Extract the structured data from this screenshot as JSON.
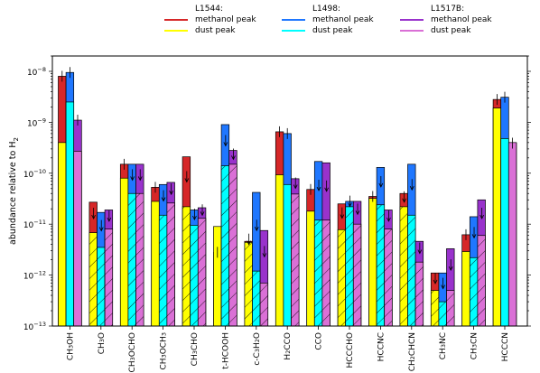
{
  "chart_data": {
    "type": "bar",
    "ylabel": "abundance relative to H",
    "ylabel_sub": "2",
    "yscale": "log",
    "ylim": [
      1e-13,
      2e-08
    ],
    "yticks": [
      {
        "value": 1e-13,
        "label": "10",
        "exp": "−13"
      },
      {
        "value": 1e-12,
        "label": "10",
        "exp": "−12"
      },
      {
        "value": 1e-11,
        "label": "10",
        "exp": "−11"
      },
      {
        "value": 1e-10,
        "label": "10",
        "exp": "−10"
      },
      {
        "value": 1e-09,
        "label": "10",
        "exp": "−9"
      },
      {
        "value": 1e-08,
        "label": "10",
        "exp": "−8"
      }
    ],
    "categories": [
      "CH3OH",
      "CH3O",
      "CH3OCHO",
      "CH3OCH3",
      "CH3CHO",
      "t-HCOOH",
      "c-C3H2O",
      "H2CCO",
      "CCO",
      "HCCCHO",
      "HCCNC",
      "CH2CHCN",
      "CH3NC",
      "CH3CN",
      "HCCCN"
    ],
    "category_labels": [
      [
        [
          "CH",
          ""
        ],
        [
          "3",
          "sub"
        ],
        [
          "OH",
          ""
        ]
      ],
      [
        [
          "CH",
          ""
        ],
        [
          "3",
          "sub"
        ],
        [
          "O",
          ""
        ]
      ],
      [
        [
          "CH",
          ""
        ],
        [
          "3",
          "sub"
        ],
        [
          "OCHO",
          ""
        ]
      ],
      [
        [
          "CH",
          ""
        ],
        [
          "3",
          "sub"
        ],
        [
          "OCH",
          ""
        ],
        [
          "3",
          "sub"
        ]
      ],
      [
        [
          "CH",
          ""
        ],
        [
          "3",
          "sub"
        ],
        [
          "CHO",
          ""
        ]
      ],
      [
        [
          "t-HCOOH",
          ""
        ]
      ],
      [
        [
          "c-C",
          ""
        ],
        [
          "3",
          "sub"
        ],
        [
          "H",
          ""
        ],
        [
          "2",
          "sub"
        ],
        [
          "O",
          ""
        ]
      ],
      [
        [
          "H",
          ""
        ],
        [
          "2",
          "sub"
        ],
        [
          "CCO",
          ""
        ]
      ],
      [
        [
          "CCO",
          ""
        ]
      ],
      [
        [
          "HCCCHO",
          ""
        ]
      ],
      [
        [
          "HCCNC",
          ""
        ]
      ],
      [
        [
          "CH",
          ""
        ],
        [
          "2",
          "sub"
        ],
        [
          "CHCN",
          ""
        ]
      ],
      [
        [
          "CH",
          ""
        ],
        [
          "3",
          "sub"
        ],
        [
          "NC",
          ""
        ]
      ],
      [
        [
          "CH",
          ""
        ],
        [
          "3",
          "sub"
        ],
        [
          "CN",
          ""
        ]
      ],
      [
        [
          "HCCCN",
          ""
        ]
      ]
    ],
    "series": [
      {
        "name": "methanol peak",
        "source": "L1544",
        "peak": "methanol",
        "color": "#d62728",
        "values": [
          8e-09,
          2.7e-11,
          1.5e-10,
          5.3e-11,
          2.1e-10,
          2.8e-12,
          4.6e-12,
          6.5e-10,
          4.8e-11,
          2.5e-11,
          3.5e-11,
          4e-11,
          1.1e-12,
          6.2e-12,
          2.8e-09
        ],
        "upper_limit": [
          false,
          true,
          false,
          false,
          true,
          false,
          true,
          false,
          false,
          true,
          false,
          true,
          true,
          false,
          false
        ]
      },
      {
        "name": "dust peak",
        "source": "L1544",
        "peak": "dust",
        "color": "#ffff00",
        "values": [
          4e-10,
          6.8e-12,
          8e-11,
          2.8e-11,
          2.2e-11,
          9e-12,
          4.4e-12,
          9.3e-11,
          1.8e-11,
          7.8e-12,
          3.2e-11,
          2.2e-11,
          5e-13,
          2.9e-12,
          1.9e-09
        ],
        "upper_limit": [
          false,
          false,
          false,
          false,
          false,
          false,
          false,
          false,
          false,
          false,
          false,
          false,
          false,
          false,
          false
        ]
      },
      {
        "name": "methanol peak",
        "source": "L1498",
        "peak": "methanol",
        "color": "#1f77ff",
        "values": [
          9.5e-09,
          1.7e-11,
          1.5e-10,
          6e-11,
          1.9e-11,
          9e-10,
          4.2e-11,
          6e-10,
          1.7e-10,
          2.8e-11,
          1.3e-10,
          1.5e-10,
          1.1e-12,
          1.4e-11,
          3.1e-09
        ],
        "upper_limit": [
          false,
          true,
          true,
          true,
          true,
          true,
          true,
          false,
          true,
          true,
          true,
          true,
          true,
          true,
          false
        ]
      },
      {
        "name": "dust peak",
        "source": "L1498",
        "peak": "dust",
        "color": "#00ffff",
        "values": [
          2.5e-09,
          3.5e-12,
          4e-11,
          1.5e-11,
          9.5e-12,
          1.4e-10,
          1.2e-12,
          6e-11,
          1.2e-11,
          2.2e-11,
          2.4e-11,
          1.5e-11,
          3e-13,
          2.2e-12,
          4.8e-10
        ],
        "upper_limit": [
          false,
          true,
          true,
          true,
          true,
          true,
          true,
          false,
          true,
          true,
          true,
          true,
          true,
          true,
          false
        ]
      },
      {
        "name": "methanol peak",
        "source": "L1517B",
        "peak": "methanol",
        "color": "#9932cc",
        "values": [
          1.1e-09,
          1.9e-11,
          1.5e-10,
          6.6e-11,
          2.1e-11,
          2.8e-10,
          7.5e-12,
          7.8e-11,
          1.6e-10,
          2.8e-11,
          1.9e-11,
          4.6e-12,
          3.3e-12,
          3e-11,
          3.9e-10
        ],
        "upper_limit": [
          false,
          true,
          true,
          true,
          true,
          true,
          true,
          true,
          true,
          true,
          true,
          true,
          true,
          true,
          false
        ]
      },
      {
        "name": "dust peak",
        "source": "L1517B",
        "peak": "dust",
        "color": "#da70d6",
        "values": [
          2.7e-10,
          8e-12,
          4e-11,
          2.6e-11,
          1.3e-11,
          1.5e-10,
          7e-13,
          3.9e-11,
          1.2e-11,
          1e-11,
          8e-12,
          1.8e-12,
          5e-13,
          6e-12,
          4e-10
        ],
        "upper_limit": [
          false,
          true,
          true,
          true,
          true,
          true,
          true,
          true,
          true,
          true,
          true,
          true,
          true,
          true,
          false
        ]
      }
    ],
    "legend": {
      "placement": "top",
      "groups": [
        {
          "title": "L1544:",
          "entries": [
            {
              "label": "methanol peak",
              "color": "#d62728"
            },
            {
              "label": "dust peak",
              "color": "#ffff00"
            }
          ]
        },
        {
          "title": "L1498:",
          "entries": [
            {
              "label": "methanol peak",
              "color": "#1f77ff"
            },
            {
              "label": "dust peak",
              "color": "#00ffff"
            }
          ]
        },
        {
          "title": "L1517B:",
          "entries": [
            {
              "label": "methanol peak",
              "color": "#9932cc"
            },
            {
              "label": "dust peak",
              "color": "#da70d6"
            }
          ]
        }
      ]
    },
    "grid": false
  }
}
